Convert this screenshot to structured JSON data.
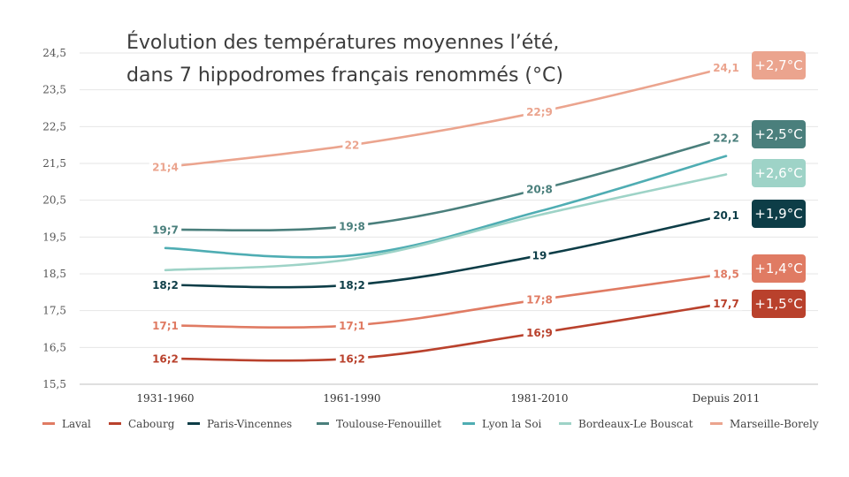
{
  "chart_data": {
    "type": "line",
    "title_lines": [
      "Évolution des températures moyennes l’été,",
      "dans 7 hippodromes français renommés (°C)"
    ],
    "categories": [
      "1931-1960",
      "1961-1990",
      "1981-2010",
      "Depuis 2011"
    ],
    "ylim": [
      15.5,
      24.5
    ],
    "yticks": [
      "15,5",
      "16,5",
      "17,5",
      "18,5",
      "19,5",
      "20,5",
      "21,5",
      "22,5",
      "23,5",
      "24,5"
    ],
    "grid": true,
    "legend_position": "bottom",
    "series": [
      {
        "name": "Laval",
        "color": "#e07b63",
        "values": [
          17.1,
          17.1,
          17.8,
          18.5
        ],
        "labels": [
          "17;1",
          "17;1",
          "17;8",
          "18,5"
        ],
        "change": "+1,4°C"
      },
      {
        "name": "Cabourg",
        "color": "#b9412c",
        "values": [
          16.2,
          16.2,
          16.9,
          17.7
        ],
        "labels": [
          "16;2",
          "16;2",
          "16;9",
          "17,7"
        ],
        "change": "+1,5°C"
      },
      {
        "name": "Paris-Vincennes",
        "color": "#0d3d47",
        "values": [
          18.2,
          18.2,
          19.0,
          20.1
        ],
        "labels": [
          "18;2",
          "18;2",
          "19",
          "20,1"
        ],
        "change": "+1,9°C"
      },
      {
        "name": "Toulouse-Fenouillet",
        "color": "#4a7f7c",
        "values": [
          19.7,
          19.8,
          20.8,
          22.2
        ],
        "labels": [
          "19;7",
          "19;8",
          "20;8",
          "22,2"
        ],
        "change": "+2,5°C"
      },
      {
        "name": "Lyon la Soi",
        "color": "#4fadb3",
        "values": [
          19.2,
          19.0,
          20.2,
          21.7
        ],
        "labels": [
          "",
          "",
          "",
          ""
        ],
        "change": ""
      },
      {
        "name": "Bordeaux-Le Bouscat",
        "color": "#9ed3c7",
        "values": [
          18.6,
          18.9,
          20.1,
          21.2
        ],
        "labels": [
          "",
          "",
          "",
          ""
        ],
        "change": "+2,6°C"
      },
      {
        "name": "Marseille-Borely",
        "color": "#eba48e",
        "values": [
          21.4,
          22.0,
          22.9,
          24.1
        ],
        "labels": [
          "21;4",
          "22",
          "22;9",
          "24,1"
        ],
        "change": "+2,7°C"
      }
    ]
  }
}
